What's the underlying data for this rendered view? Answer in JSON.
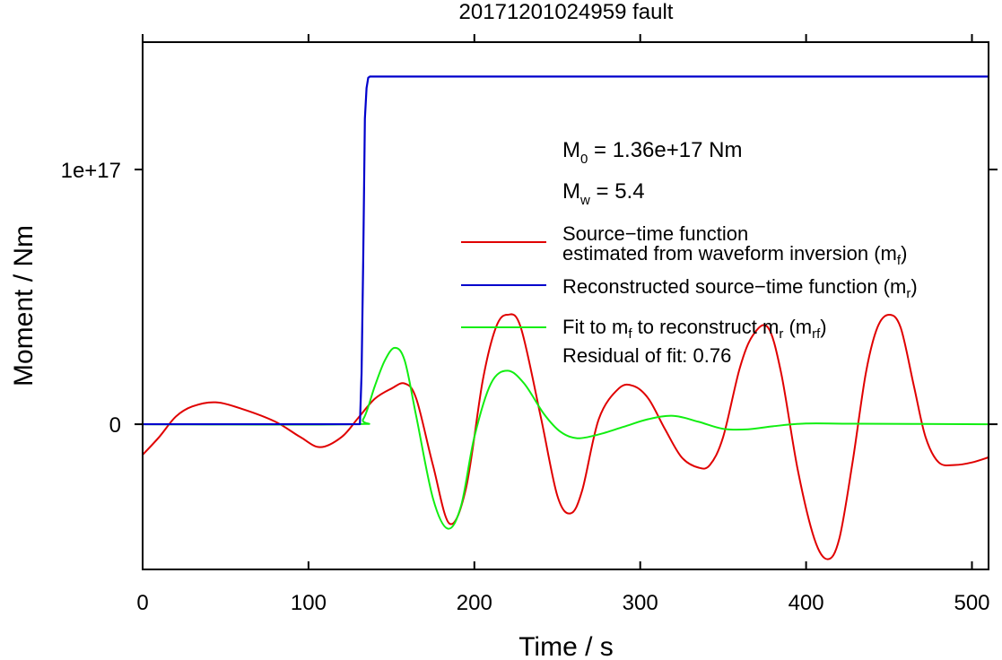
{
  "chart_data": {
    "type": "line",
    "title": "20171201024959 fault",
    "xlabel": "Time / s",
    "ylabel": "Moment / Nm",
    "xlim": [
      0,
      510
    ],
    "ylim": [
      -5.7e+16,
      1.5e+17
    ],
    "x_ticks": [
      0,
      100,
      200,
      300,
      400,
      500
    ],
    "x_tick_labels": [
      "0",
      "100",
      "200",
      "300",
      "400",
      "500"
    ],
    "y_ticks": [
      0,
      1e+17
    ],
    "y_tick_labels": [
      "0",
      "1e+17"
    ],
    "grid": false,
    "legend_position": "right",
    "annotations": {
      "m0_main": "M",
      "m0_sub": "0",
      "m0_value": " = 1.36e+17 Nm",
      "mw_main": "M",
      "mw_sub": "w",
      "mw_value": " = 5.4",
      "residual": "Residual of fit: 0.76"
    },
    "legend": {
      "red_line1": "Source−time function",
      "red_line2_main": "estimated from waveform inversion (m",
      "red_line2_sub": "f",
      "red_line2_end": ")",
      "blue_main": "Reconstructed source−time function (m",
      "blue_sub": "r",
      "blue_end": ")",
      "green_a": "Fit to m",
      "green_sub1": "f",
      "green_b": " to reconstruct m",
      "green_sub2": "r",
      "green_c": " (m",
      "green_sub3": "rf",
      "green_d": ")"
    },
    "series": [
      {
        "name": "Source−time function estimated from waveform inversion (mf)",
        "color": "#e00000",
        "x": [
          0,
          10,
          20,
          30,
          44,
          60,
          80,
          95,
          107,
          120,
          130,
          140,
          150,
          158,
          165,
          175,
          185,
          195,
          205,
          213,
          220,
          228,
          240,
          250,
          258,
          265,
          275,
          287,
          296,
          305,
          315,
          325,
          335,
          342,
          350,
          360,
          368,
          377,
          385,
          395,
          405,
          413,
          420,
          428,
          436,
          443,
          450,
          457,
          465,
          472,
          480,
          490,
          500,
          510
        ],
        "y": [
          -1.2e+16,
          -5000000000000000.0,
          3000000000000000.0,
          7000000000000000.0,
          8600000000000000.0,
          6000000000000000.0,
          1000000000000000.0,
          -5000000000000000.0,
          -9000000000000000.0,
          -5000000000000000.0,
          2500000000000000.0,
          1e+16,
          1.4e+16,
          1.6e+16,
          1e+16,
          -1.6e+16,
          -3.9e+16,
          -2.5e+16,
          1.7e+16,
          3.8e+16,
          4.3e+16,
          3.8e+16,
          3000000000000000.0,
          -2.8e+16,
          -3.5e+16,
          -2.6e+16,
          2000000000000000.0,
          1.4e+16,
          1.5e+16,
          1e+16,
          -2000000000000000.0,
          -1.3e+16,
          -1.7e+16,
          -1.6e+16,
          -5000000000000000.0,
          2.2e+16,
          3.5e+16,
          3.8e+16,
          2e+16,
          -1.8e+16,
          -4.5e+16,
          -5.3e+16,
          -4.5e+16,
          -1.5e+16,
          2e+16,
          3.8e+16,
          4.3e+16,
          3.8e+16,
          1.5e+16,
          -5000000000000000.0,
          -1.5e+16,
          -1.6e+16,
          -1.5e+16,
          -1.3e+16
        ]
      },
      {
        "name": "Reconstructed source−time function (mr)",
        "color": "#0000cc",
        "x": [
          0,
          131,
          132,
          133,
          134,
          135,
          136,
          137,
          510
        ],
        "y": [
          0,
          0,
          2e+16,
          6.5e+16,
          1.2e+17,
          1.32e+17,
          1.36e+17,
          1.365e+17,
          1.365e+17
        ],
        "smooth": false
      },
      {
        "name": "Fit to mf to reconstruct mr (mrf)",
        "color": "#11ee11",
        "x": [
          0,
          125,
          133,
          140,
          146,
          152,
          158,
          165,
          175,
          184,
          192,
          200,
          210,
          220,
          230,
          242,
          252,
          262,
          275,
          290,
          305,
          320,
          335,
          350,
          365,
          380,
          400,
          430,
          510
        ],
        "y": [
          0,
          0,
          2000000000000000.0,
          1.5e+16,
          2.5e+16,
          3e+16,
          2.5e+16,
          3000000000000000.0,
          -2.9e+16,
          -4.1e+16,
          -3.2e+16,
          -5000000000000000.0,
          1.6e+16,
          2.1e+16,
          1.6e+16,
          4000000000000000.0,
          -3000000000000000.0,
          -5500000000000000.0,
          -4000000000000000.0,
          -1000000000000000.0,
          2000000000000000.0,
          3300000000000000.0,
          1000000000000000.0,
          -1800000000000000.0,
          -2000000000000000.0,
          -800000000000000.0,
          300000000000000.0,
          200000000000000.0,
          0
        ]
      }
    ]
  }
}
